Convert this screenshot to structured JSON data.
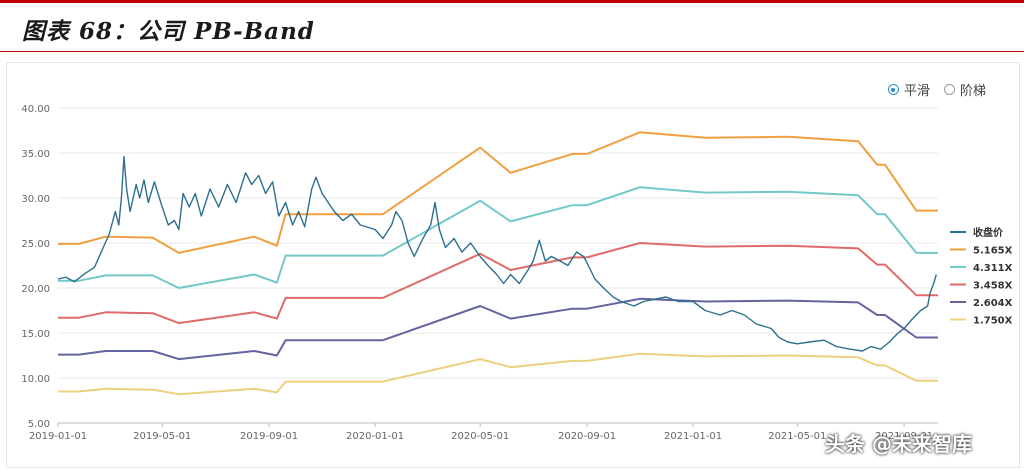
{
  "title": "图表 68：公司 PB-Band",
  "mode_toggle": {
    "options": [
      {
        "label": "平滑",
        "selected": true
      },
      {
        "label": "阶梯",
        "selected": false
      }
    ],
    "accent": "#2b8fc7"
  },
  "watermark": "头条 @未来智库",
  "chart_data": {
    "type": "line",
    "ylim": [
      5,
      40
    ],
    "xlim": [
      "2019-01-01",
      "2021-10-10"
    ],
    "yticks": [
      "5.00",
      "10.00",
      "15.00",
      "20.00",
      "25.00",
      "30.00",
      "35.00",
      "40.00"
    ],
    "xticks": [
      "2019-01-01",
      "2019-05-01",
      "2019-09-01",
      "2020-01-01",
      "2020-05-01",
      "2020-09-01",
      "2021-01-01",
      "2021-05-01",
      "2021-09-01"
    ],
    "grid": "horizontal",
    "legend_position": "right",
    "series": [
      {
        "name": "收盘价",
        "color": "#2d6f8f",
        "points": [
          [
            "2019-01-01",
            21.0
          ],
          [
            "2019-01-10",
            21.2
          ],
          [
            "2019-01-20",
            20.7
          ],
          [
            "2019-02-01",
            21.6
          ],
          [
            "2019-02-12",
            22.3
          ],
          [
            "2019-02-22",
            24.5
          ],
          [
            "2019-03-01",
            26.0
          ],
          [
            "2019-03-08",
            28.5
          ],
          [
            "2019-03-12",
            27.0
          ],
          [
            "2019-03-15",
            30.0
          ],
          [
            "2019-03-18",
            34.6
          ],
          [
            "2019-03-21",
            31.0
          ],
          [
            "2019-03-25",
            28.5
          ],
          [
            "2019-04-01",
            31.5
          ],
          [
            "2019-04-05",
            30.0
          ],
          [
            "2019-04-10",
            32.0
          ],
          [
            "2019-04-15",
            29.5
          ],
          [
            "2019-04-22",
            31.8
          ],
          [
            "2019-05-01",
            29.0
          ],
          [
            "2019-05-08",
            27.0
          ],
          [
            "2019-05-15",
            27.5
          ],
          [
            "2019-05-20",
            26.5
          ],
          [
            "2019-05-25",
            30.5
          ],
          [
            "2019-06-01",
            29.0
          ],
          [
            "2019-06-08",
            30.5
          ],
          [
            "2019-06-15",
            28.0
          ],
          [
            "2019-06-25",
            31.0
          ],
          [
            "2019-07-05",
            29.0
          ],
          [
            "2019-07-15",
            31.5
          ],
          [
            "2019-07-25",
            29.5
          ],
          [
            "2019-08-05",
            32.8
          ],
          [
            "2019-08-12",
            31.5
          ],
          [
            "2019-08-20",
            32.5
          ],
          [
            "2019-08-28",
            30.5
          ],
          [
            "2019-09-05",
            31.8
          ],
          [
            "2019-09-12",
            28.0
          ],
          [
            "2019-09-20",
            29.5
          ],
          [
            "2019-09-28",
            27.0
          ],
          [
            "2019-10-05",
            28.5
          ],
          [
            "2019-10-12",
            26.8
          ],
          [
            "2019-10-20",
            31.0
          ],
          [
            "2019-10-25",
            32.3
          ],
          [
            "2019-11-01",
            30.5
          ],
          [
            "2019-11-08",
            29.5
          ],
          [
            "2019-11-15",
            28.5
          ],
          [
            "2019-11-25",
            27.5
          ],
          [
            "2019-12-05",
            28.2
          ],
          [
            "2019-12-15",
            27.0
          ],
          [
            "2020-01-01",
            26.5
          ],
          [
            "2020-01-10",
            25.5
          ],
          [
            "2020-01-20",
            27.0
          ],
          [
            "2020-01-25",
            28.5
          ],
          [
            "2020-02-01",
            27.5
          ],
          [
            "2020-02-08",
            25.0
          ],
          [
            "2020-02-15",
            23.5
          ],
          [
            "2020-02-25",
            25.5
          ],
          [
            "2020-03-05",
            27.0
          ],
          [
            "2020-03-10",
            29.5
          ],
          [
            "2020-03-15",
            26.5
          ],
          [
            "2020-03-22",
            24.5
          ],
          [
            "2020-04-01",
            25.5
          ],
          [
            "2020-04-10",
            24.0
          ],
          [
            "2020-04-20",
            25.0
          ],
          [
            "2020-05-01",
            23.5
          ],
          [
            "2020-05-10",
            22.5
          ],
          [
            "2020-05-20",
            21.5
          ],
          [
            "2020-05-28",
            20.5
          ],
          [
            "2020-06-05",
            21.5
          ],
          [
            "2020-06-15",
            20.5
          ],
          [
            "2020-06-25",
            22.0
          ],
          [
            "2020-07-01",
            23.0
          ],
          [
            "2020-07-08",
            25.3
          ],
          [
            "2020-07-15",
            23.0
          ],
          [
            "2020-07-22",
            23.5
          ],
          [
            "2020-08-01",
            23.0
          ],
          [
            "2020-08-10",
            22.5
          ],
          [
            "2020-08-20",
            24.0
          ],
          [
            "2020-08-28",
            23.5
          ],
          [
            "2020-09-01",
            22.8
          ],
          [
            "2020-09-10",
            21.0
          ],
          [
            "2020-09-20",
            20.0
          ],
          [
            "2020-10-01",
            19.0
          ],
          [
            "2020-10-10",
            18.5
          ],
          [
            "2020-10-25",
            18.0
          ],
          [
            "2020-11-05",
            18.5
          ],
          [
            "2020-11-20",
            18.8
          ],
          [
            "2020-12-01",
            19.0
          ],
          [
            "2020-12-15",
            18.5
          ],
          [
            "2021-01-01",
            18.5
          ],
          [
            "2021-01-15",
            17.5
          ],
          [
            "2021-02-01",
            17.0
          ],
          [
            "2021-02-15",
            17.5
          ],
          [
            "2021-03-01",
            17.0
          ],
          [
            "2021-03-15",
            16.0
          ],
          [
            "2021-04-01",
            15.5
          ],
          [
            "2021-04-10",
            14.5
          ],
          [
            "2021-04-20",
            14.0
          ],
          [
            "2021-05-01",
            13.8
          ],
          [
            "2021-05-15",
            14.0
          ],
          [
            "2021-06-01",
            14.2
          ],
          [
            "2021-06-15",
            13.5
          ],
          [
            "2021-07-01",
            13.2
          ],
          [
            "2021-07-15",
            13.0
          ],
          [
            "2021-07-25",
            13.5
          ],
          [
            "2021-08-05",
            13.2
          ],
          [
            "2021-08-15",
            14.0
          ],
          [
            "2021-08-25",
            15.0
          ],
          [
            "2021-09-01",
            15.5
          ],
          [
            "2021-09-10",
            16.5
          ],
          [
            "2021-09-20",
            17.5
          ],
          [
            "2021-09-28",
            18.0
          ],
          [
            "2021-10-01",
            19.5
          ],
          [
            "2021-10-05",
            20.5
          ],
          [
            "2021-10-08",
            21.5
          ]
        ]
      },
      {
        "name": "5.165X",
        "color": "#f0a040",
        "points": [
          [
            "2019-01-01",
            24.9
          ],
          [
            "2019-01-25",
            24.9
          ],
          [
            "2019-02-25",
            25.7
          ],
          [
            "2019-04-20",
            25.6
          ],
          [
            "2019-05-20",
            23.9
          ],
          [
            "2019-08-15",
            25.7
          ],
          [
            "2019-09-10",
            24.7
          ],
          [
            "2019-09-20",
            28.2
          ],
          [
            "2020-01-10",
            28.2
          ],
          [
            "2020-05-01",
            35.6
          ],
          [
            "2020-06-05",
            32.8
          ],
          [
            "2020-08-15",
            34.9
          ],
          [
            "2020-09-01",
            34.9
          ],
          [
            "2020-11-01",
            37.3
          ],
          [
            "2021-01-15",
            36.7
          ],
          [
            "2021-04-20",
            36.8
          ],
          [
            "2021-07-10",
            36.3
          ],
          [
            "2021-08-01",
            33.7
          ],
          [
            "2021-08-10",
            33.7
          ],
          [
            "2021-09-15",
            28.6
          ],
          [
            "2021-10-10",
            28.6
          ]
        ]
      },
      {
        "name": "4.311X",
        "color": "#74c8c8",
        "points": [
          [
            "2019-01-01",
            20.8
          ],
          [
            "2019-01-25",
            20.8
          ],
          [
            "2019-02-25",
            21.4
          ],
          [
            "2019-04-20",
            21.4
          ],
          [
            "2019-05-20",
            20.0
          ],
          [
            "2019-08-15",
            21.5
          ],
          [
            "2019-09-10",
            20.6
          ],
          [
            "2019-09-20",
            23.6
          ],
          [
            "2020-01-10",
            23.6
          ],
          [
            "2020-05-01",
            29.7
          ],
          [
            "2020-06-05",
            27.4
          ],
          [
            "2020-08-15",
            29.2
          ],
          [
            "2020-09-01",
            29.2
          ],
          [
            "2020-11-01",
            31.2
          ],
          [
            "2021-01-15",
            30.6
          ],
          [
            "2021-04-20",
            30.7
          ],
          [
            "2021-07-10",
            30.3
          ],
          [
            "2021-08-01",
            28.2
          ],
          [
            "2021-08-10",
            28.2
          ],
          [
            "2021-09-15",
            23.9
          ],
          [
            "2021-10-10",
            23.9
          ]
        ]
      },
      {
        "name": "3.458X",
        "color": "#e06a6a",
        "points": [
          [
            "2019-01-01",
            16.7
          ],
          [
            "2019-01-25",
            16.7
          ],
          [
            "2019-02-25",
            17.3
          ],
          [
            "2019-04-20",
            17.2
          ],
          [
            "2019-05-20",
            16.1
          ],
          [
            "2019-08-15",
            17.3
          ],
          [
            "2019-09-10",
            16.6
          ],
          [
            "2019-09-20",
            18.9
          ],
          [
            "2020-01-10",
            18.9
          ],
          [
            "2020-05-01",
            23.8
          ],
          [
            "2020-06-05",
            22.0
          ],
          [
            "2020-08-15",
            23.4
          ],
          [
            "2020-09-01",
            23.4
          ],
          [
            "2020-11-01",
            25.0
          ],
          [
            "2021-01-15",
            24.6
          ],
          [
            "2021-04-20",
            24.7
          ],
          [
            "2021-07-10",
            24.4
          ],
          [
            "2021-08-01",
            22.6
          ],
          [
            "2021-08-10",
            22.6
          ],
          [
            "2021-09-15",
            19.2
          ],
          [
            "2021-10-10",
            19.2
          ]
        ]
      },
      {
        "name": "2.604X",
        "color": "#6464a0",
        "points": [
          [
            "2019-01-01",
            12.6
          ],
          [
            "2019-01-25",
            12.6
          ],
          [
            "2019-02-25",
            13.0
          ],
          [
            "2019-04-20",
            13.0
          ],
          [
            "2019-05-20",
            12.1
          ],
          [
            "2019-08-15",
            13.0
          ],
          [
            "2019-09-10",
            12.5
          ],
          [
            "2019-09-20",
            14.2
          ],
          [
            "2020-01-10",
            14.2
          ],
          [
            "2020-05-01",
            18.0
          ],
          [
            "2020-06-05",
            16.6
          ],
          [
            "2020-08-15",
            17.7
          ],
          [
            "2020-09-01",
            17.7
          ],
          [
            "2020-11-01",
            18.8
          ],
          [
            "2021-01-15",
            18.5
          ],
          [
            "2021-04-20",
            18.6
          ],
          [
            "2021-07-10",
            18.4
          ],
          [
            "2021-08-01",
            17.0
          ],
          [
            "2021-08-10",
            17.0
          ],
          [
            "2021-09-15",
            14.5
          ],
          [
            "2021-10-10",
            14.5
          ]
        ]
      },
      {
        "name": "1.750X",
        "color": "#ecd080",
        "points": [
          [
            "2019-01-01",
            8.5
          ],
          [
            "2019-01-25",
            8.5
          ],
          [
            "2019-02-25",
            8.8
          ],
          [
            "2019-04-20",
            8.7
          ],
          [
            "2019-05-20",
            8.2
          ],
          [
            "2019-08-15",
            8.8
          ],
          [
            "2019-09-10",
            8.4
          ],
          [
            "2019-09-20",
            9.6
          ],
          [
            "2020-01-10",
            9.6
          ],
          [
            "2020-05-01",
            12.1
          ],
          [
            "2020-06-05",
            11.2
          ],
          [
            "2020-08-15",
            11.9
          ],
          [
            "2020-09-01",
            11.9
          ],
          [
            "2020-11-01",
            12.7
          ],
          [
            "2021-01-15",
            12.4
          ],
          [
            "2021-04-20",
            12.5
          ],
          [
            "2021-07-10",
            12.3
          ],
          [
            "2021-08-01",
            11.4
          ],
          [
            "2021-08-10",
            11.4
          ],
          [
            "2021-09-15",
            9.7
          ],
          [
            "2021-10-10",
            9.7
          ]
        ]
      }
    ]
  }
}
